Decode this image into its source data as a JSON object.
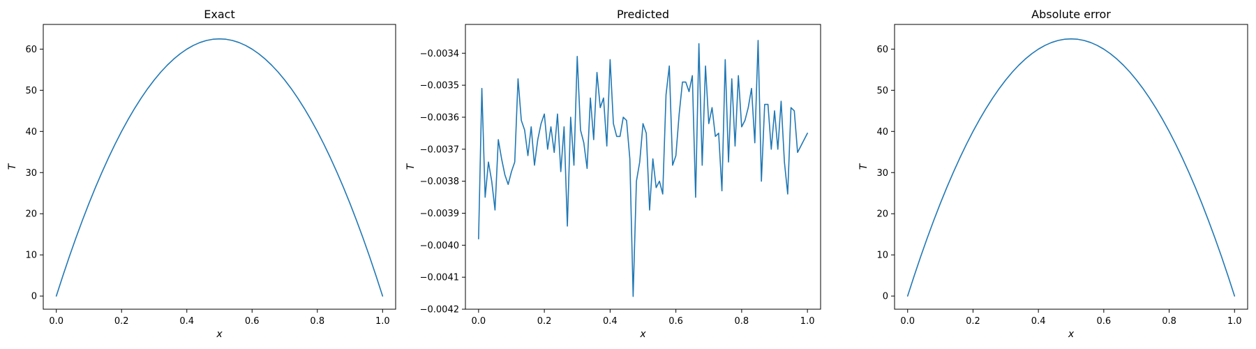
{
  "chart_data": [
    {
      "type": "line",
      "title": "Exact",
      "xlabel": "x",
      "ylabel": "T",
      "xlim": [
        -0.04,
        1.04
      ],
      "ylim": [
        -3.2,
        66
      ],
      "x_ticks": [
        0.0,
        0.2,
        0.4,
        0.6,
        0.8,
        1.0
      ],
      "x_tick_labels": [
        "0.0",
        "0.2",
        "0.4",
        "0.6",
        "0.8",
        "1.0"
      ],
      "y_ticks": [
        0,
        10,
        20,
        30,
        40,
        50,
        60
      ],
      "y_tick_labels": [
        "0",
        "10",
        "20",
        "30",
        "40",
        "50",
        "60"
      ],
      "grid": false,
      "color": "#1f77b4",
      "series": [
        {
          "x": [
            0.0,
            0.02,
            0.04,
            0.06,
            0.08,
            0.1,
            0.12,
            0.14,
            0.16,
            0.18,
            0.2,
            0.22,
            0.24,
            0.26,
            0.28,
            0.3,
            0.32,
            0.34,
            0.36,
            0.38,
            0.4,
            0.42,
            0.44,
            0.46,
            0.48,
            0.5,
            0.52,
            0.54,
            0.56,
            0.58,
            0.6,
            0.62,
            0.64,
            0.66,
            0.68,
            0.7,
            0.72,
            0.74,
            0.76,
            0.78,
            0.8,
            0.82,
            0.84,
            0.86,
            0.88,
            0.9,
            0.92,
            0.94,
            0.96,
            0.98,
            1.0
          ],
          "values": [
            0,
            4.9,
            9.6,
            14.1,
            18.4,
            22.5,
            26.4,
            30.1,
            33.6,
            36.9,
            40,
            42.9,
            45.6,
            48.1,
            50.4,
            52.5,
            54.4,
            56.1,
            57.6,
            58.9,
            60,
            60.9,
            61.6,
            62.1,
            62.4,
            62.5,
            62.4,
            62.1,
            61.6,
            60.9,
            60,
            58.9,
            57.6,
            56.1,
            54.4,
            52.5,
            50.4,
            48.1,
            45.6,
            42.9,
            40,
            36.9,
            33.6,
            30.1,
            26.4,
            22.5,
            18.4,
            14.1,
            9.6,
            4.9,
            0
          ]
        }
      ]
    },
    {
      "type": "line",
      "title": "Predicted",
      "xlabel": "x",
      "ylabel": "T",
      "xlim": [
        -0.04,
        1.04
      ],
      "ylim": [
        -0.0042,
        -0.00331
      ],
      "x_ticks": [
        0.0,
        0.2,
        0.4,
        0.6,
        0.8,
        1.0
      ],
      "x_tick_labels": [
        "0.0",
        "0.2",
        "0.4",
        "0.6",
        "0.8",
        "1.0"
      ],
      "y_ticks": [
        -0.0042,
        -0.0041,
        -0.004,
        -0.0039,
        -0.0038,
        -0.0037,
        -0.0036,
        -0.0035,
        -0.0034
      ],
      "y_tick_labels": [
        "−0.0042",
        "−0.0041",
        "−0.0040",
        "−0.0039",
        "−0.0038",
        "−0.0037",
        "−0.0036",
        "−0.0035",
        "−0.0034"
      ],
      "grid": false,
      "color": "#1f77b4",
      "series": [
        {
          "x": [
            0.0,
            0.01,
            0.02,
            0.03,
            0.04,
            0.05,
            0.06,
            0.07,
            0.08,
            0.09,
            0.1,
            0.11,
            0.12,
            0.13,
            0.14,
            0.15,
            0.16,
            0.17,
            0.18,
            0.19,
            0.2,
            0.21,
            0.22,
            0.23,
            0.24,
            0.25,
            0.26,
            0.27,
            0.28,
            0.29,
            0.3,
            0.31,
            0.32,
            0.33,
            0.34,
            0.35,
            0.36,
            0.37,
            0.38,
            0.39,
            0.4,
            0.41,
            0.42,
            0.43,
            0.44,
            0.45,
            0.46,
            0.47,
            0.48,
            0.49,
            0.5,
            0.51,
            0.52,
            0.53,
            0.54,
            0.55,
            0.56,
            0.57,
            0.58,
            0.59,
            0.6,
            0.61,
            0.62,
            0.63,
            0.64,
            0.65,
            0.66,
            0.67,
            0.68,
            0.69,
            0.7,
            0.71,
            0.72,
            0.73,
            0.74,
            0.75,
            0.76,
            0.77,
            0.78,
            0.79,
            0.8,
            0.81,
            0.82,
            0.83,
            0.84,
            0.85,
            0.86,
            0.87,
            0.88,
            0.89,
            0.9,
            0.91,
            0.92,
            0.93,
            0.94,
            0.95,
            0.96,
            0.97,
            0.98,
            0.99,
            1.0
          ],
          "values": [
            -0.00398,
            -0.00351,
            -0.00385,
            -0.00374,
            -0.0038,
            -0.00389,
            -0.00367,
            -0.00373,
            -0.00378,
            -0.00381,
            -0.00377,
            -0.00374,
            -0.00348,
            -0.00361,
            -0.00364,
            -0.00372,
            -0.00363,
            -0.00375,
            -0.00367,
            -0.00362,
            -0.00359,
            -0.0037,
            -0.00363,
            -0.00371,
            -0.00359,
            -0.00377,
            -0.00363,
            -0.00394,
            -0.0036,
            -0.00375,
            -0.00341,
            -0.00364,
            -0.00368,
            -0.00376,
            -0.00354,
            -0.00367,
            -0.00346,
            -0.00357,
            -0.00354,
            -0.00369,
            -0.00342,
            -0.00362,
            -0.00366,
            -0.00366,
            -0.0036,
            -0.00361,
            -0.00373,
            -0.00416,
            -0.0038,
            -0.00374,
            -0.00362,
            -0.00365,
            -0.00389,
            -0.00373,
            -0.00382,
            -0.0038,
            -0.00384,
            -0.00353,
            -0.00344,
            -0.00375,
            -0.00372,
            -0.00359,
            -0.00349,
            -0.00349,
            -0.00352,
            -0.00347,
            -0.00385,
            -0.00337,
            -0.00375,
            -0.00344,
            -0.00362,
            -0.00357,
            -0.00366,
            -0.00365,
            -0.00383,
            -0.00342,
            -0.00374,
            -0.00348,
            -0.00369,
            -0.00347,
            -0.00363,
            -0.00361,
            -0.00357,
            -0.00351,
            -0.00368,
            -0.00336,
            -0.0038,
            -0.00356,
            -0.00356,
            -0.0037,
            -0.00358,
            -0.0037,
            -0.00355,
            -0.00374,
            -0.00384,
            -0.00357,
            -0.00358,
            -0.00371,
            -0.00369,
            -0.00367,
            -0.00365
          ]
        }
      ]
    },
    {
      "type": "line",
      "title": "Absolute error",
      "xlabel": "x",
      "ylabel": "T",
      "xlim": [
        -0.04,
        1.04
      ],
      "ylim": [
        -3.2,
        66
      ],
      "x_ticks": [
        0.0,
        0.2,
        0.4,
        0.6,
        0.8,
        1.0
      ],
      "x_tick_labels": [
        "0.0",
        "0.2",
        "0.4",
        "0.6",
        "0.8",
        "1.0"
      ],
      "y_ticks": [
        0,
        10,
        20,
        30,
        40,
        50,
        60
      ],
      "y_tick_labels": [
        "0",
        "10",
        "20",
        "30",
        "40",
        "50",
        "60"
      ],
      "grid": false,
      "color": "#1f77b4",
      "series": [
        {
          "x": [
            0.0,
            0.02,
            0.04,
            0.06,
            0.08,
            0.1,
            0.12,
            0.14,
            0.16,
            0.18,
            0.2,
            0.22,
            0.24,
            0.26,
            0.28,
            0.3,
            0.32,
            0.34,
            0.36,
            0.38,
            0.4,
            0.42,
            0.44,
            0.46,
            0.48,
            0.5,
            0.52,
            0.54,
            0.56,
            0.58,
            0.6,
            0.62,
            0.64,
            0.66,
            0.68,
            0.7,
            0.72,
            0.74,
            0.76,
            0.78,
            0.8,
            0.82,
            0.84,
            0.86,
            0.88,
            0.9,
            0.92,
            0.94,
            0.96,
            0.98,
            1.0
          ],
          "values": [
            0,
            4.9,
            9.6,
            14.1,
            18.4,
            22.5,
            26.4,
            30.1,
            33.6,
            36.9,
            40,
            42.9,
            45.6,
            48.1,
            50.4,
            52.5,
            54.4,
            56.1,
            57.6,
            58.9,
            60,
            60.9,
            61.6,
            62.1,
            62.4,
            62.5,
            62.4,
            62.1,
            61.6,
            60.9,
            60,
            58.9,
            57.6,
            56.1,
            54.4,
            52.5,
            50.4,
            48.1,
            45.6,
            42.9,
            40,
            36.9,
            33.6,
            30.1,
            26.4,
            22.5,
            18.4,
            14.1,
            9.6,
            4.9,
            0
          ]
        }
      ]
    }
  ]
}
